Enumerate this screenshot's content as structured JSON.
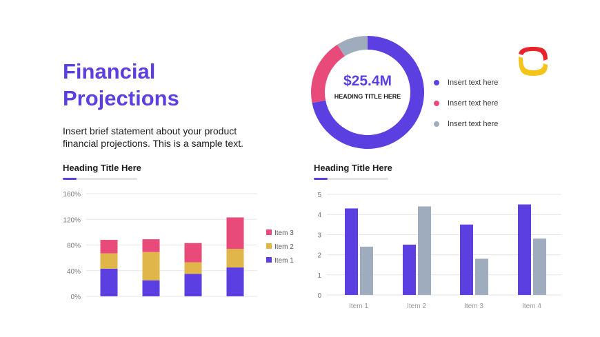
{
  "title": "Financial Projections",
  "intro": "Insert brief statement about your product financial projections. This is a sample text.",
  "colors": {
    "accent": "#5b3fe0",
    "pink": "#e84b7a",
    "gold": "#e0b54a",
    "slate": "#9eacbd"
  },
  "logo_icon": "rounded-square-logo-icon",
  "chart_data": [
    {
      "type": "pie",
      "variant": "donut",
      "center_value": "$25.4M",
      "center_label": "HEADING TITLE HERE",
      "slices": [
        {
          "label": "Insert text here",
          "value": 72,
          "color": "#5b3fe0"
        },
        {
          "label": "Insert text here",
          "value": 19,
          "color": "#e84b7a"
        },
        {
          "label": "Insert text here",
          "value": 9,
          "color": "#9eacbd"
        }
      ]
    },
    {
      "type": "bar",
      "stacked": true,
      "title": "Heading Title Here",
      "categories": [
        "",
        "",
        "",
        ""
      ],
      "yticks": [
        "0%",
        "40%",
        "80%",
        "120%",
        "160%"
      ],
      "ylim": [
        0,
        160
      ],
      "legend_position": "right",
      "series": [
        {
          "name": "Item 1",
          "color": "#5b3fe0",
          "values": [
            43,
            25,
            35,
            45
          ]
        },
        {
          "name": "Item 2",
          "color": "#e0b54a",
          "values": [
            24,
            44,
            18,
            29
          ]
        },
        {
          "name": "Item 3",
          "color": "#e84b7a",
          "values": [
            21,
            20,
            30,
            49
          ]
        }
      ]
    },
    {
      "type": "bar",
      "title": "Heading Title Here",
      "categories": [
        "Item 1",
        "Item 2",
        "Item 3",
        "Item 4"
      ],
      "yticks": [
        "0",
        "1",
        "2",
        "3",
        "4",
        "5"
      ],
      "ylim": [
        0,
        5
      ],
      "series": [
        {
          "color": "#5b3fe0",
          "values": [
            4.3,
            2.5,
            3.5,
            4.5
          ]
        },
        {
          "color": "#9eacbd",
          "values": [
            2.4,
            4.4,
            1.8,
            2.8
          ]
        }
      ]
    }
  ]
}
